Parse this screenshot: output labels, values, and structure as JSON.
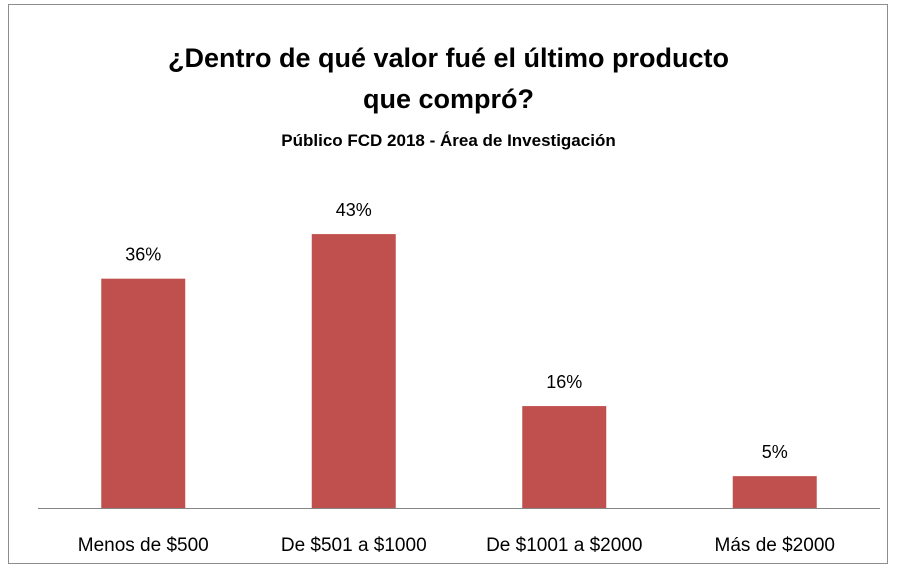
{
  "chart_data": {
    "type": "bar",
    "title": "¿Dentro de qué valor fué el último producto\nque compró?",
    "subtitle": "Público FCD 2018 - Área de Investigación",
    "categories": [
      "Menos de $500",
      "De $501 a $1000",
      "De $1001 a $2000",
      "Más de $2000"
    ],
    "values": [
      36,
      43,
      16,
      5
    ],
    "value_labels": [
      "36%",
      "43%",
      "16%",
      "5%"
    ],
    "color": "#c0504d"
  }
}
